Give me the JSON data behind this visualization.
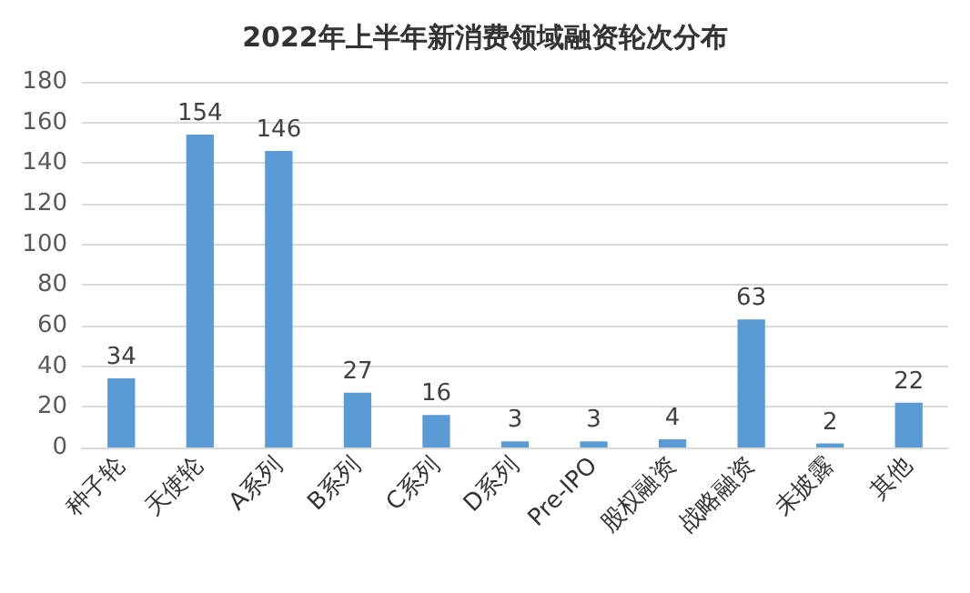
{
  "chart_data": {
    "type": "bar",
    "title": "2022年上半年新消费领域融资轮次分布",
    "categories": [
      "种子轮",
      "天使轮",
      "A系列",
      "B系列",
      "C系列",
      "D系列",
      "Pre-IPO",
      "股权融资",
      "战略融资",
      "未披露",
      "其他"
    ],
    "values": [
      34,
      154,
      146,
      27,
      16,
      3,
      3,
      4,
      63,
      2,
      22
    ],
    "color": "#5b9bd5",
    "ylim": [
      0,
      180
    ],
    "yticks": [
      0,
      20,
      40,
      60,
      80,
      100,
      120,
      140,
      160,
      180
    ],
    "grid": "y",
    "data_labels": true
  }
}
